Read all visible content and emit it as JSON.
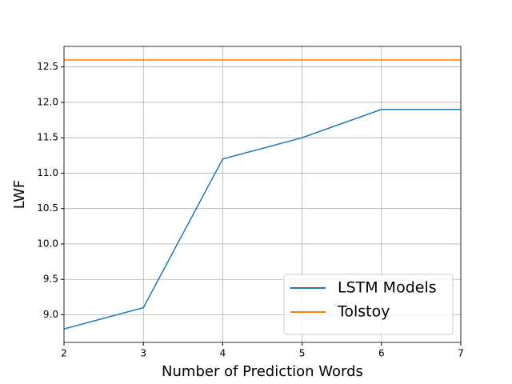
{
  "chart_data": {
    "type": "line",
    "xlabel": "Number of Prediction Words",
    "ylabel": "LWF",
    "x": [
      2,
      3,
      4,
      5,
      6,
      7
    ],
    "series": [
      {
        "name": "LSTM Models",
        "color": "#1f77b4",
        "values": [
          8.8,
          9.1,
          11.2,
          11.5,
          11.9,
          11.9
        ]
      },
      {
        "name": "Tolstoy",
        "color": "#ff7f0e",
        "values": [
          12.6,
          12.6,
          12.6,
          12.6,
          12.6,
          12.6
        ]
      }
    ],
    "xlim": [
      2,
      7
    ],
    "xticks": [
      2,
      3,
      4,
      5,
      6,
      7
    ],
    "ylim": [
      8.61,
      12.79
    ],
    "yticks": [
      {
        "value": 9.0,
        "label": "9.0"
      },
      9.5,
      {
        "value": 10.0,
        "label": "10.0"
      },
      10.5,
      {
        "value": 11.0,
        "label": "11.0"
      },
      11.5,
      {
        "value": 12.0,
        "label": "12.0"
      },
      12.5
    ],
    "grid": true,
    "legend": "lower right"
  }
}
